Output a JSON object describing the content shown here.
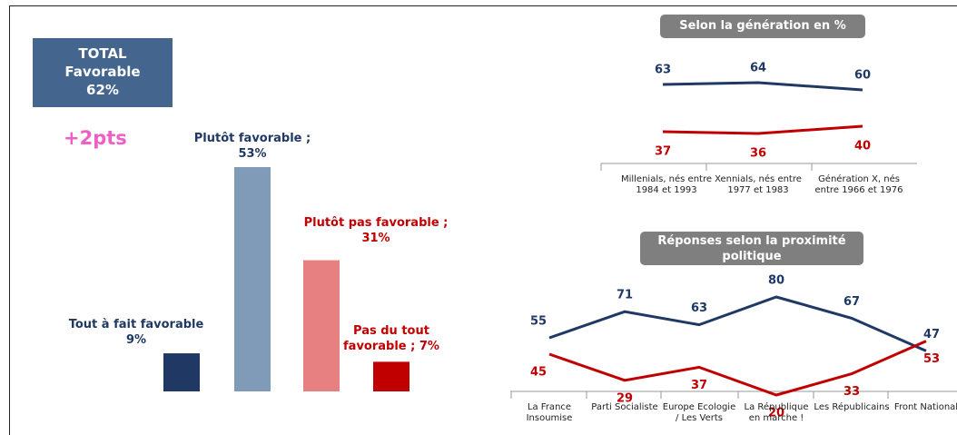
{
  "chart_data": [
    {
      "type": "bar",
      "total": {
        "title": "TOTAL",
        "label": "Favorable",
        "value": 62,
        "value_label": "62%"
      },
      "change": "+2pts",
      "categories": [
        "Tout à fait favorable",
        "Plutôt favorable ;",
        "Plutôt pas favorable ;",
        "Pas du tout favorable ;"
      ],
      "values": [
        9,
        53,
        31,
        7
      ],
      "value_labels": [
        "9%",
        "53%",
        "31%",
        "7%"
      ],
      "colors": [
        "#1f3864",
        "#7f9bb8",
        "#e78080",
        "#c00000"
      ],
      "label_colors": [
        "#1f3864",
        "#1f3864",
        "#c00000",
        "#c00000"
      ]
    },
    {
      "type": "line",
      "title": "Selon la génération en %",
      "categories": [
        "Millenials, nés entre 1984 et 1993",
        "Xennials, nés entre 1977 et 1983",
        "Génération X, nés entre 1966 et 1976"
      ],
      "series": [
        {
          "color": "#1f3864",
          "values": [
            63,
            64,
            60
          ]
        },
        {
          "color": "#c00000",
          "values": [
            37,
            36,
            40
          ]
        }
      ]
    },
    {
      "type": "line",
      "title": "Réponses selon la proximité politique",
      "categories": [
        "La France Insoumise",
        "Parti Socialiste",
        "Europe Ecologie / Les Verts",
        "La République en marche !",
        "Les Républicains",
        "Front National"
      ],
      "series": [
        {
          "color": "#1f3864",
          "values": [
            55,
            71,
            63,
            80,
            67,
            47
          ]
        },
        {
          "color": "#c00000",
          "values": [
            45,
            29,
            37,
            20,
            33,
            53
          ]
        }
      ]
    }
  ]
}
